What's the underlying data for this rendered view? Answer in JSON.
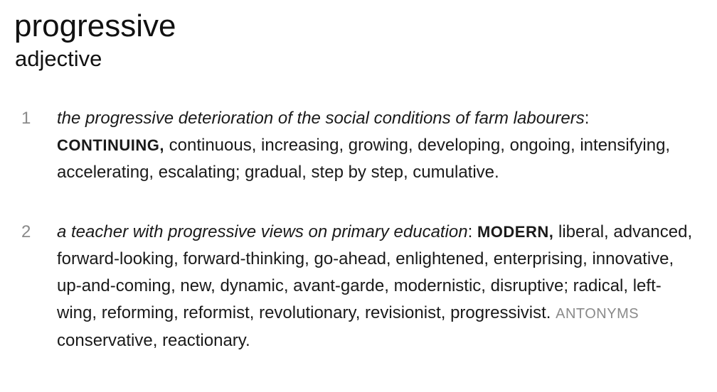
{
  "entry": {
    "headword": "progressive",
    "part_of_speech": "adjective"
  },
  "senses": [
    {
      "number": "1",
      "example": "the progressive deterioration of the social conditions of farm labourers",
      "example_colon": ":",
      "core": "CONTINUING,",
      "synonyms": " continuous, increasing, growing, developing, ongoing, intensifying, accelerating, escalating; gradual, step by step, cumulative."
    },
    {
      "number": "2",
      "example": "a teacher with progressive views on primary education",
      "example_colon": ":",
      "core": "MODERN,",
      "synonyms": " liberal, advanced, forward-looking, forward-thinking, go-ahead, enlightened, enterprising, innovative, up-and-coming, new, dynamic, avant-garde, modernistic, disruptive; radical, left-wing, reforming, reformist, revolutionary, revisionist, progressivist. ",
      "antonyms_label": "ANTONYMS",
      "antonyms": " conservative, reactionary."
    }
  ]
}
